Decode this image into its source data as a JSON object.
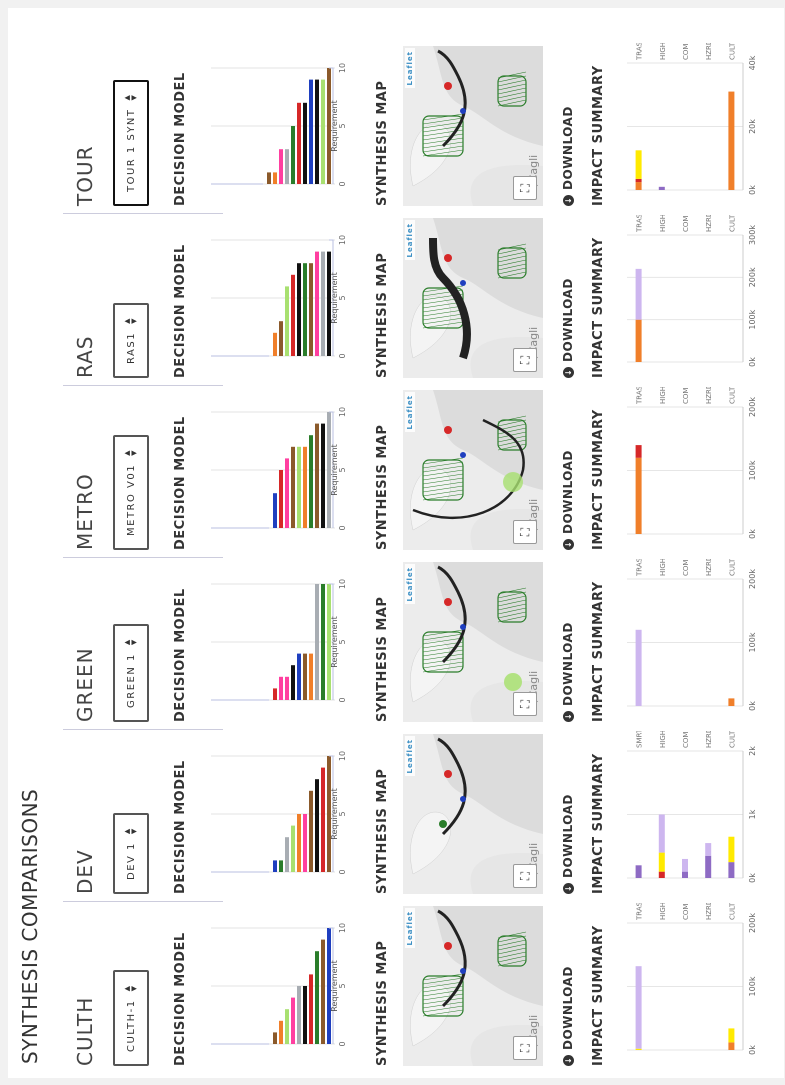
{
  "page_title": "SYNTHESIS COMPARISONS",
  "labels": {
    "decision_model": "DECISION MODEL",
    "synthesis_map": "SYNTHESIS MAP",
    "download": "DOWNLOAD",
    "impact_summary": "IMPACT SUMMARY",
    "requirement": "Requirement",
    "leaflet": "Leaflet",
    "map_place_text": "du/Cagli"
  },
  "colors": {
    "brown": "#8B5A2B",
    "blue": "#1f3fbf",
    "green": "#2a7d2a",
    "red": "#d62828",
    "black": "#111111",
    "gray": "#a8adb3",
    "pink": "#ff3fa0",
    "lightgreen": "#a8e070",
    "orange": "#f07f2a",
    "purple": "#8e6bc4",
    "lavender": "#cdb6ef",
    "yellow": "#ffea00"
  },
  "columns": [
    {
      "name": "CULTH",
      "selector": "CULTH-1",
      "active": false,
      "dm_ticks": [
        "10",
        "5",
        "0"
      ],
      "dm_bars": [
        {
          "v": 10,
          "c": "blue"
        },
        {
          "v": 9,
          "c": "brown"
        },
        {
          "v": 8,
          "c": "green"
        },
        {
          "v": 6,
          "c": "red"
        },
        {
          "v": 5,
          "c": "black"
        },
        {
          "v": 5,
          "c": "gray"
        },
        {
          "v": 4,
          "c": "pink"
        },
        {
          "v": 3,
          "c": "lightgreen"
        },
        {
          "v": 2,
          "c": "orange"
        },
        {
          "v": 1,
          "c": "brown"
        }
      ],
      "map_variant": "a",
      "is_ticks": [
        "200k",
        "100k",
        "0k"
      ],
      "is_max": 200000,
      "is_cats": [
        "CULT",
        "HZRD",
        "COMI",
        "HIGH",
        "TRAS"
      ],
      "is_bars": [
        [
          {
            "v": 12000,
            "c": "orange"
          },
          {
            "v": 22000,
            "c": "yellow"
          }
        ],
        [],
        [],
        [],
        [
          {
            "v": 2000,
            "c": "yellow"
          },
          {
            "v": 130000,
            "c": "lavender"
          }
        ]
      ]
    },
    {
      "name": "DEV",
      "selector": "DEV 1",
      "active": false,
      "dm_ticks": [
        "10",
        "5",
        "0"
      ],
      "dm_bars": [
        {
          "v": 10,
          "c": "brown"
        },
        {
          "v": 9,
          "c": "red"
        },
        {
          "v": 8,
          "c": "black"
        },
        {
          "v": 7,
          "c": "brown"
        },
        {
          "v": 5,
          "c": "pink"
        },
        {
          "v": 5,
          "c": "orange"
        },
        {
          "v": 4,
          "c": "lightgreen"
        },
        {
          "v": 3,
          "c": "gray"
        },
        {
          "v": 1,
          "c": "green"
        },
        {
          "v": 1,
          "c": "blue"
        }
      ],
      "map_variant": "b",
      "is_ticks": [
        "2k",
        "1k",
        "0k"
      ],
      "is_max": 2000,
      "is_cats": [
        "CULT",
        "HZRD",
        "COMI",
        "HIGH",
        "SMRT"
      ],
      "is_bars": [
        [
          {
            "v": 250,
            "c": "purple"
          },
          {
            "v": 400,
            "c": "yellow"
          }
        ],
        [
          {
            "v": 350,
            "c": "purple"
          },
          {
            "v": 200,
            "c": "lavender"
          }
        ],
        [
          {
            "v": 100,
            "c": "purple"
          },
          {
            "v": 200,
            "c": "lavender"
          }
        ],
        [
          {
            "v": 100,
            "c": "red"
          },
          {
            "v": 300,
            "c": "yellow"
          },
          {
            "v": 600,
            "c": "lavender"
          }
        ],
        [
          {
            "v": 200,
            "c": "purple"
          }
        ]
      ]
    },
    {
      "name": "GREEN",
      "selector": "GREEN 1",
      "active": false,
      "dm_ticks": [
        "10",
        "5",
        "0"
      ],
      "dm_bars": [
        {
          "v": 10,
          "c": "lightgreen"
        },
        {
          "v": 10,
          "c": "green"
        },
        {
          "v": 10,
          "c": "gray"
        },
        {
          "v": 4,
          "c": "orange"
        },
        {
          "v": 4,
          "c": "brown"
        },
        {
          "v": 4,
          "c": "blue"
        },
        {
          "v": 3,
          "c": "black"
        },
        {
          "v": 2,
          "c": "pink"
        },
        {
          "v": 2,
          "c": "pink"
        },
        {
          "v": 1,
          "c": "red"
        }
      ],
      "map_variant": "c",
      "is_ticks": [
        "200k",
        "100k",
        "0k"
      ],
      "is_max": 200000,
      "is_cats": [
        "CULT",
        "HZRD",
        "COMI",
        "HIGH",
        "TRAS"
      ],
      "is_bars": [
        [
          {
            "v": 12000,
            "c": "orange"
          }
        ],
        [],
        [],
        [],
        [
          {
            "v": 120000,
            "c": "lavender"
          }
        ]
      ]
    },
    {
      "name": "METRO",
      "selector": "METRO V01",
      "active": false,
      "dm_ticks": [
        "10",
        "5",
        "0"
      ],
      "dm_bars": [
        {
          "v": 10,
          "c": "gray"
        },
        {
          "v": 9,
          "c": "black"
        },
        {
          "v": 9,
          "c": "brown"
        },
        {
          "v": 8,
          "c": "green"
        },
        {
          "v": 7,
          "c": "orange"
        },
        {
          "v": 7,
          "c": "lightgreen"
        },
        {
          "v": 7,
          "c": "brown"
        },
        {
          "v": 6,
          "c": "pink"
        },
        {
          "v": 5,
          "c": "red"
        },
        {
          "v": 3,
          "c": "blue"
        }
      ],
      "map_variant": "d",
      "is_ticks": [
        "200k",
        "100k",
        "0k"
      ],
      "is_max": 200000,
      "is_cats": [
        "CULT",
        "HZRD",
        "COMI",
        "HIGH",
        "TRAS"
      ],
      "is_bars": [
        [],
        [],
        [],
        [],
        [
          {
            "v": 120000,
            "c": "orange"
          },
          {
            "v": 20000,
            "c": "red"
          }
        ]
      ]
    },
    {
      "name": "RAS",
      "selector": "RAS1",
      "active": false,
      "dm_ticks": [
        "10",
        "5",
        "0"
      ],
      "dm_bars": [
        {
          "v": 9,
          "c": "black"
        },
        {
          "v": 9,
          "c": "gray"
        },
        {
          "v": 9,
          "c": "pink"
        },
        {
          "v": 8,
          "c": "brown"
        },
        {
          "v": 8,
          "c": "green"
        },
        {
          "v": 8,
          "c": "black"
        },
        {
          "v": 7,
          "c": "red"
        },
        {
          "v": 6,
          "c": "lightgreen"
        },
        {
          "v": 3,
          "c": "brown"
        },
        {
          "v": 2,
          "c": "orange"
        }
      ],
      "map_variant": "e",
      "is_ticks": [
        "300k",
        "200k",
        "100k",
        "0k"
      ],
      "is_max": 300000,
      "is_cats": [
        "CULT",
        "HZRD",
        "COMI",
        "HIGH",
        "TRAS"
      ],
      "is_bars": [
        [],
        [],
        [],
        [],
        [
          {
            "v": 100000,
            "c": "orange"
          },
          {
            "v": 120000,
            "c": "lavender"
          }
        ]
      ]
    },
    {
      "name": "TOUR",
      "selector": "TOUR 1 SYNT",
      "active": true,
      "dm_ticks": [
        "10",
        "5",
        "0"
      ],
      "dm_bars": [
        {
          "v": 10,
          "c": "brown"
        },
        {
          "v": 9,
          "c": "lightgreen"
        },
        {
          "v": 9,
          "c": "black"
        },
        {
          "v": 9,
          "c": "blue"
        },
        {
          "v": 7,
          "c": "black"
        },
        {
          "v": 7,
          "c": "red"
        },
        {
          "v": 5,
          "c": "green"
        },
        {
          "v": 3,
          "c": "gray"
        },
        {
          "v": 3,
          "c": "pink"
        },
        {
          "v": 1,
          "c": "orange"
        },
        {
          "v": 1,
          "c": "brown"
        }
      ],
      "map_variant": "f",
      "is_ticks": [
        "40k",
        "20k",
        "0k"
      ],
      "is_max": 40000,
      "is_cats": [
        "CULT",
        "HZRD",
        "COMI",
        "HIGH",
        "TRAS"
      ],
      "is_bars": [
        [
          {
            "v": 31000,
            "c": "orange"
          }
        ],
        [],
        [],
        [
          {
            "v": 1000,
            "c": "purple"
          }
        ],
        [
          {
            "v": 2500,
            "c": "orange"
          },
          {
            "v": 1000,
            "c": "red"
          },
          {
            "v": 9000,
            "c": "yellow"
          }
        ]
      ]
    }
  ]
}
